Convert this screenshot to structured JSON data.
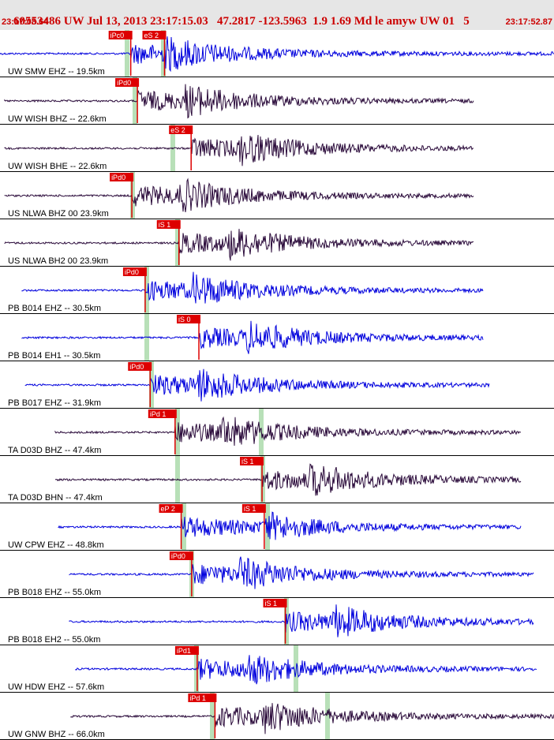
{
  "header": {
    "event_info": "60553486 UW Jul 13, 2013 23:17:15.03   47.2817 -123.5963  1.9 1.69 Md le amyw UW 01",
    "count": "5",
    "time_start": "23:17:08.64",
    "time_end": "23:17:52.87"
  },
  "colors": {
    "header_bg": "#e6e6e6",
    "header_text": "#cc0000",
    "pick_box": "#dd0000",
    "pick_text": "#ffffff",
    "highlight": "#b8e0b8",
    "divider": "#000000",
    "trace_blue": "#0000dd",
    "trace_dark": "#2a0a3a",
    "fit_curve": "#000000",
    "red_line": "#dd0000"
  },
  "chart_data": {
    "type": "line",
    "title": "",
    "xlabel": "",
    "ylabel": "",
    "x_range": [
      "23:17:08.64",
      "23:17:52.87"
    ],
    "traces": [
      {
        "label": "UW SMW EHZ -- 19.5km",
        "color": "blue",
        "picks": [
          {
            "label": "iPc0",
            "t": 0.236
          },
          {
            "label": "eS 2",
            "t": 0.297
          }
        ]
      },
      {
        "label": "UW WISH BHZ -- 22.6km",
        "color": "dark",
        "picks": [
          {
            "label": "iPd0",
            "t": 0.248
          }
        ]
      },
      {
        "label": "UW WISH BHE -- 22.6km",
        "color": "dark",
        "picks": [
          {
            "label": "eS 2",
            "t": 0.345
          }
        ]
      },
      {
        "label": "US NLWA BHZ 00 23.9km",
        "color": "dark",
        "picks": [
          {
            "label": "iPd0",
            "t": 0.238
          }
        ]
      },
      {
        "label": "US NLWA BH2 00 23.9km",
        "color": "dark",
        "picks": [
          {
            "label": "iS 1",
            "t": 0.323
          }
        ]
      },
      {
        "label": "PB B014 EHZ -- 30.5km",
        "color": "blue",
        "picks": [
          {
            "label": "iPd0",
            "t": 0.262
          }
        ]
      },
      {
        "label": "PB B014 EH1 -- 30.5km",
        "color": "blue",
        "picks": [
          {
            "label": "iS 0",
            "t": 0.359
          }
        ]
      },
      {
        "label": "PB B017 EHZ -- 31.9km",
        "color": "blue",
        "picks": [
          {
            "label": "iPd0",
            "t": 0.271
          }
        ]
      },
      {
        "label": "TA D03D BHZ -- 47.4km",
        "color": "dark",
        "picks": [
          {
            "label": "iPd 1",
            "t": 0.316
          }
        ]
      },
      {
        "label": "TA D03D BHN -- 47.4km",
        "color": "dark",
        "picks": [
          {
            "label": "iS 1",
            "t": 0.473
          }
        ]
      },
      {
        "label": "UW CPW EHZ -- 48.8km",
        "color": "blue",
        "picks": [
          {
            "label": "eP 2",
            "t": 0.327
          },
          {
            "label": "iS 1",
            "t": 0.477
          }
        ]
      },
      {
        "label": "PB B018 EHZ -- 55.0km",
        "color": "blue",
        "picks": [
          {
            "label": "iPd0",
            "t": 0.346
          }
        ]
      },
      {
        "label": "PB B018 EH2 -- 55.0km",
        "color": "blue",
        "picks": [
          {
            "label": "iS 1",
            "t": 0.515
          }
        ]
      },
      {
        "label": "UW HDW EHZ -- 57.6km",
        "color": "blue",
        "picks": [
          {
            "label": "iPd1",
            "t": 0.356
          }
        ]
      },
      {
        "label": "UW GNW BHZ -- 66.0km",
        "color": "dark",
        "picks": [
          {
            "label": "iPd 1",
            "t": 0.388
          }
        ]
      }
    ]
  }
}
